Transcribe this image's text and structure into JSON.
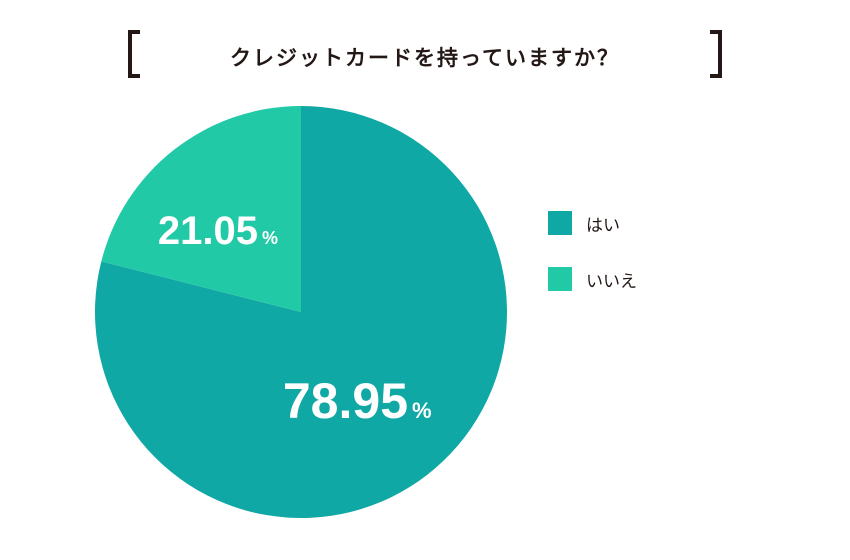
{
  "title": "クレジットカードを持っていますか？",
  "colors": {
    "yes": "#0fa8a4",
    "no": "#22c9a7",
    "text": "#231815"
  },
  "chart_data": {
    "type": "pie",
    "title": "クレジットカードを持っていますか？",
    "slices": [
      {
        "label": "はい",
        "value": 78.95,
        "display": "78.95",
        "unit": "%",
        "color": "#0fa8a4"
      },
      {
        "label": "いいえ",
        "value": 21.05,
        "display": "21.05",
        "unit": "%",
        "color": "#22c9a7"
      }
    ],
    "legend": "right"
  }
}
